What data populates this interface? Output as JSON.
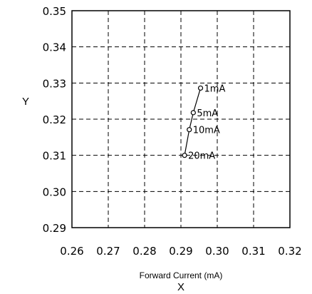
{
  "chart_data": {
    "type": "scatter",
    "title": "",
    "xlabel": "Forward Current (mA)",
    "xvar": "X",
    "ylabel": "Y",
    "xlim": [
      0.26,
      0.32
    ],
    "ylim": [
      0.29,
      0.35
    ],
    "xticks": [
      "0.26",
      "0.27",
      "0.28",
      "0.29",
      "0.30",
      "0.31",
      "0.32"
    ],
    "yticks": [
      "0.35",
      "0.34",
      "0.33",
      "0.32",
      "0.31",
      "0.30",
      "0.29"
    ],
    "grid": true,
    "connected": true,
    "points": [
      {
        "x": 0.2954,
        "y": 0.3286,
        "label": "1mA"
      },
      {
        "x": 0.2934,
        "y": 0.3218,
        "label": "5mA"
      },
      {
        "x": 0.2923,
        "y": 0.3171,
        "label": "10mA"
      },
      {
        "x": 0.291,
        "y": 0.31,
        "label": "20mA"
      }
    ]
  }
}
